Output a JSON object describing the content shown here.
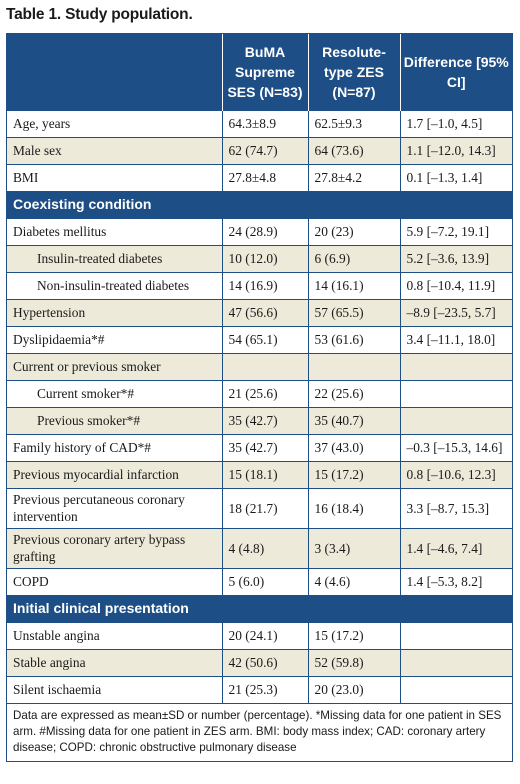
{
  "title": "Table 1. Study population.",
  "header": {
    "col0": "",
    "col1": "BuMA Supreme SES (N=83)",
    "col2": "Resolute-type ZES (N=87)",
    "col3": "Difference [95% CI]"
  },
  "rows": [
    {
      "type": "data",
      "label": "Age, years",
      "v1": "64.3±8.9",
      "v2": "62.5±9.3",
      "v3": "1.7 [–1.0, 4.5]"
    },
    {
      "type": "data",
      "label": "Male sex",
      "v1": "62 (74.7)",
      "v2": "64 (73.6)",
      "v3": "1.1 [–12.0, 14.3]"
    },
    {
      "type": "data",
      "label": "BMI",
      "v1": "27.8±4.8",
      "v2": "27.8±4.2",
      "v3": "0.1 [–1.3, 1.4]"
    },
    {
      "type": "section",
      "label": "Coexisting condition"
    },
    {
      "type": "data",
      "label": "Diabetes mellitus",
      "v1": "24 (28.9)",
      "v2": "20 (23)",
      "v3": "5.9 [–7.2, 19.1]"
    },
    {
      "type": "indent",
      "label": "Insulin-treated diabetes",
      "v1": "10 (12.0)",
      "v2": "6 (6.9)",
      "v3": "5.2 [–3.6, 13.9]"
    },
    {
      "type": "indent",
      "label": "Non-insulin-treated diabetes",
      "v1": "14 (16.9)",
      "v2": "14 (16.1)",
      "v3": "0.8 [–10.4, 11.9]"
    },
    {
      "type": "data",
      "label": "Hypertension",
      "v1": "47 (56.6)",
      "v2": "57 (65.5)",
      "v3": "–8.9 [–23.5, 5.7]"
    },
    {
      "type": "data",
      "label": "Dyslipidaemia*#",
      "v1": "54 (65.1)",
      "v2": "53 (61.6)",
      "v3": "3.4 [–11.1, 18.0]"
    },
    {
      "type": "data",
      "label": "Current or previous smoker",
      "v1": "",
      "v2": "",
      "v3": ""
    },
    {
      "type": "indent",
      "label": "Current smoker*#",
      "v1": "21 (25.6)",
      "v2": "22 (25.6)",
      "v3": ""
    },
    {
      "type": "indent",
      "label": "Previous smoker*#",
      "v1": "35 (42.7)",
      "v2": "35 (40.7)",
      "v3": ""
    },
    {
      "type": "data",
      "label": "Family history of CAD*#",
      "v1": "35 (42.7)",
      "v2": "37 (43.0)",
      "v3": "–0.3 [–15.3, 14.6]"
    },
    {
      "type": "data",
      "label": "Previous myocardial infarction",
      "v1": "15 (18.1)",
      "v2": "15 (17.2)",
      "v3": "0.8 [–10.6, 12.3]"
    },
    {
      "type": "tall",
      "label": "Previous percutaneous coronary intervention",
      "v1": "18 (21.7)",
      "v2": "16 (18.4)",
      "v3": "3.3 [–8.7, 15.3]"
    },
    {
      "type": "tall",
      "label": "Previous coronary artery bypass grafting",
      "v1": "4 (4.8)",
      "v2": "3 (3.4)",
      "v3": "1.4 [–4.6, 7.4]"
    },
    {
      "type": "data",
      "label": "COPD",
      "v1": "5 (6.0)",
      "v2": "4 (4.6)",
      "v3": "1.4 [–5.3, 8.2]"
    },
    {
      "type": "section",
      "label": "Initial clinical presentation"
    },
    {
      "type": "data",
      "label": "Unstable angina",
      "v1": "20 (24.1)",
      "v2": "15 (17.2)",
      "v3": ""
    },
    {
      "type": "data",
      "label": "Stable angina",
      "v1": "42 (50.6)",
      "v2": "52 (59.8)",
      "v3": ""
    },
    {
      "type": "data",
      "label": "Silent ischaemia",
      "v1": "21 (25.3)",
      "v2": "20 (23.0)",
      "v3": ""
    }
  ],
  "footnote": "Data are expressed as mean±SD or number (percentage). *Missing data for one patient in SES arm. #Missing data for one patient in ZES arm. BMI: body mass index; CAD: coronary artery disease; COPD: chronic obstructive pulmonary disease"
}
